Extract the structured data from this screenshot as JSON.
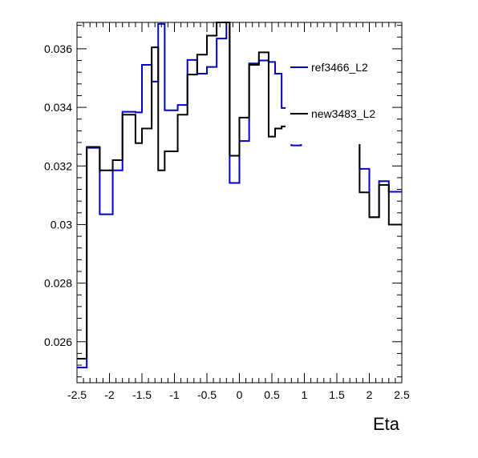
{
  "chart_data": {
    "type": "step",
    "xlabel": "Eta",
    "ylabel": "",
    "xlim": [
      -2.5,
      2.5
    ],
    "ylim": [
      0.0246,
      0.0369
    ],
    "x_ticks": [
      -2.5,
      -2,
      -1.5,
      -1,
      -0.5,
      0,
      0.5,
      1,
      1.5,
      2,
      2.5
    ],
    "x_tick_labels": [
      "-2.5",
      "-2",
      "-1.5",
      "-1",
      "-0.5",
      "0",
      "0.5",
      "1",
      "1.5",
      "2",
      "2.5"
    ],
    "y_ticks": [
      0.026,
      0.028,
      0.03,
      0.032,
      0.034,
      0.036
    ],
    "y_tick_labels": [
      "0.026",
      "0.028",
      "0.03",
      "0.032",
      "0.034",
      "0.036"
    ],
    "bin_edges": [
      -2.5,
      -2.35,
      -2.15,
      -1.95,
      -1.8,
      -1.6,
      -1.5,
      -1.35,
      -1.25,
      -1.15,
      -0.95,
      -0.8,
      -0.65,
      -0.5,
      -0.35,
      -0.2,
      -0.15,
      0,
      0.15,
      0.3,
      0.45,
      0.55,
      0.65,
      0.8,
      0.95,
      1.1,
      1.25,
      1.4,
      1.55,
      1.7,
      1.85,
      2,
      2.15,
      2.3,
      2.5
    ],
    "series": [
      {
        "name": "ref3466_L2",
        "color": "#0000cc",
        "values": [
          0.02512,
          0.03262,
          0.03035,
          0.03185,
          0.03385,
          0.03383,
          0.03545,
          0.03488,
          0.03685,
          0.0339,
          0.03408,
          0.03562,
          0.03515,
          0.03538,
          0.03635,
          0.037,
          0.03142,
          0.03285,
          0.0355,
          0.0356,
          0.03555,
          0.03515,
          0.03398,
          0.0327,
          0.0332,
          0.03283,
          0.0338,
          0.0337,
          0.0334,
          0.0334,
          0.0319,
          0.03025,
          0.03148,
          0.03112
        ]
      },
      {
        "name": "new3483_L2",
        "color": "#000000",
        "values": [
          0.02542,
          0.03265,
          0.03185,
          0.0322,
          0.03375,
          0.03278,
          0.03328,
          0.03605,
          0.03185,
          0.0325,
          0.03375,
          0.03512,
          0.0358,
          0.03645,
          0.037,
          0.037,
          0.03235,
          0.03365,
          0.03545,
          0.03588,
          0.033,
          0.03328,
          0.03335,
          0.03315,
          0.03315,
          0.03365,
          0.03312,
          0.0336,
          0.0336,
          0.0331,
          0.0311,
          0.03025,
          0.03135,
          0.03
        ]
      }
    ],
    "legend_position": "top-right"
  }
}
